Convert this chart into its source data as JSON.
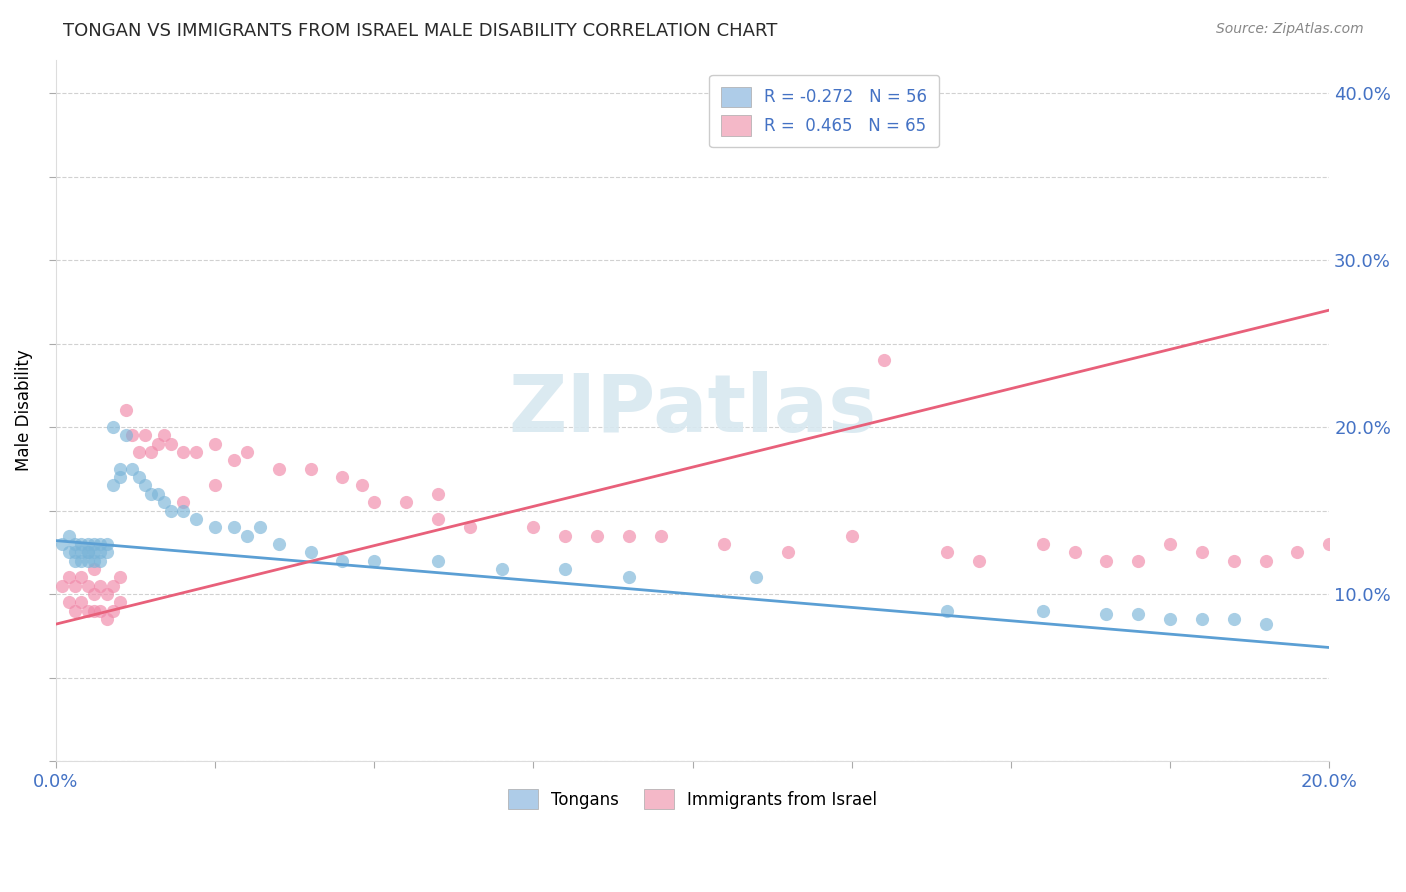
{
  "title": "TONGAN VS IMMIGRANTS FROM ISRAEL MALE DISABILITY CORRELATION CHART",
  "source": "Source: ZipAtlas.com",
  "ylabel": "Male Disability",
  "xlim": [
    0.0,
    0.2
  ],
  "ylim": [
    0.0,
    0.42
  ],
  "tongans_color": "#7ab4d8",
  "israel_color": "#f088a8",
  "tongans_line_color": "#5b9fd4",
  "israel_line_color": "#e8607a",
  "legend_patch_blue": "#aecce8",
  "legend_patch_pink": "#f4b8c8",
  "legend_text_color": "#4472c4",
  "title_color": "#3a3a3a",
  "tick_color": "#4472c4",
  "watermark_text": "ZIPatlas",
  "tongans_x": [
    0.001,
    0.002,
    0.002,
    0.003,
    0.003,
    0.003,
    0.004,
    0.004,
    0.004,
    0.005,
    0.005,
    0.005,
    0.005,
    0.006,
    0.006,
    0.006,
    0.007,
    0.007,
    0.007,
    0.008,
    0.008,
    0.009,
    0.009,
    0.01,
    0.01,
    0.011,
    0.012,
    0.013,
    0.014,
    0.015,
    0.016,
    0.017,
    0.018,
    0.02,
    0.022,
    0.025,
    0.028,
    0.03,
    0.032,
    0.035,
    0.04,
    0.045,
    0.05,
    0.06,
    0.07,
    0.08,
    0.09,
    0.11,
    0.14,
    0.155,
    0.165,
    0.17,
    0.175,
    0.18,
    0.185,
    0.19
  ],
  "tongans_y": [
    0.13,
    0.125,
    0.135,
    0.12,
    0.13,
    0.125,
    0.13,
    0.12,
    0.125,
    0.13,
    0.125,
    0.12,
    0.125,
    0.13,
    0.125,
    0.12,
    0.125,
    0.13,
    0.12,
    0.13,
    0.125,
    0.165,
    0.2,
    0.17,
    0.175,
    0.195,
    0.175,
    0.17,
    0.165,
    0.16,
    0.16,
    0.155,
    0.15,
    0.15,
    0.145,
    0.14,
    0.14,
    0.135,
    0.14,
    0.13,
    0.125,
    0.12,
    0.12,
    0.12,
    0.115,
    0.115,
    0.11,
    0.11,
    0.09,
    0.09,
    0.088,
    0.088,
    0.085,
    0.085,
    0.085,
    0.082
  ],
  "israel_x": [
    0.001,
    0.002,
    0.002,
    0.003,
    0.003,
    0.004,
    0.004,
    0.005,
    0.005,
    0.006,
    0.006,
    0.006,
    0.007,
    0.007,
    0.008,
    0.008,
    0.009,
    0.009,
    0.01,
    0.01,
    0.011,
    0.012,
    0.013,
    0.014,
    0.015,
    0.016,
    0.017,
    0.018,
    0.02,
    0.022,
    0.025,
    0.028,
    0.03,
    0.035,
    0.04,
    0.045,
    0.05,
    0.055,
    0.06,
    0.065,
    0.075,
    0.08,
    0.085,
    0.095,
    0.105,
    0.115,
    0.125,
    0.13,
    0.14,
    0.145,
    0.155,
    0.16,
    0.165,
    0.17,
    0.175,
    0.18,
    0.185,
    0.19,
    0.195,
    0.2,
    0.02,
    0.025,
    0.048,
    0.06,
    0.09
  ],
  "israel_y": [
    0.105,
    0.095,
    0.11,
    0.09,
    0.105,
    0.095,
    0.11,
    0.09,
    0.105,
    0.1,
    0.09,
    0.115,
    0.09,
    0.105,
    0.085,
    0.1,
    0.09,
    0.105,
    0.095,
    0.11,
    0.21,
    0.195,
    0.185,
    0.195,
    0.185,
    0.19,
    0.195,
    0.19,
    0.185,
    0.185,
    0.19,
    0.18,
    0.185,
    0.175,
    0.175,
    0.17,
    0.155,
    0.155,
    0.145,
    0.14,
    0.14,
    0.135,
    0.135,
    0.135,
    0.13,
    0.125,
    0.135,
    0.24,
    0.125,
    0.12,
    0.13,
    0.125,
    0.12,
    0.12,
    0.13,
    0.125,
    0.12,
    0.12,
    0.125,
    0.13,
    0.155,
    0.165,
    0.165,
    0.16,
    0.135
  ],
  "blue_line_x0": 0.0,
  "blue_line_y0": 0.132,
  "blue_line_x1": 0.2,
  "blue_line_y1": 0.068,
  "pink_line_x0": 0.0,
  "pink_line_y0": 0.082,
  "pink_line_x1": 0.2,
  "pink_line_y1": 0.27
}
